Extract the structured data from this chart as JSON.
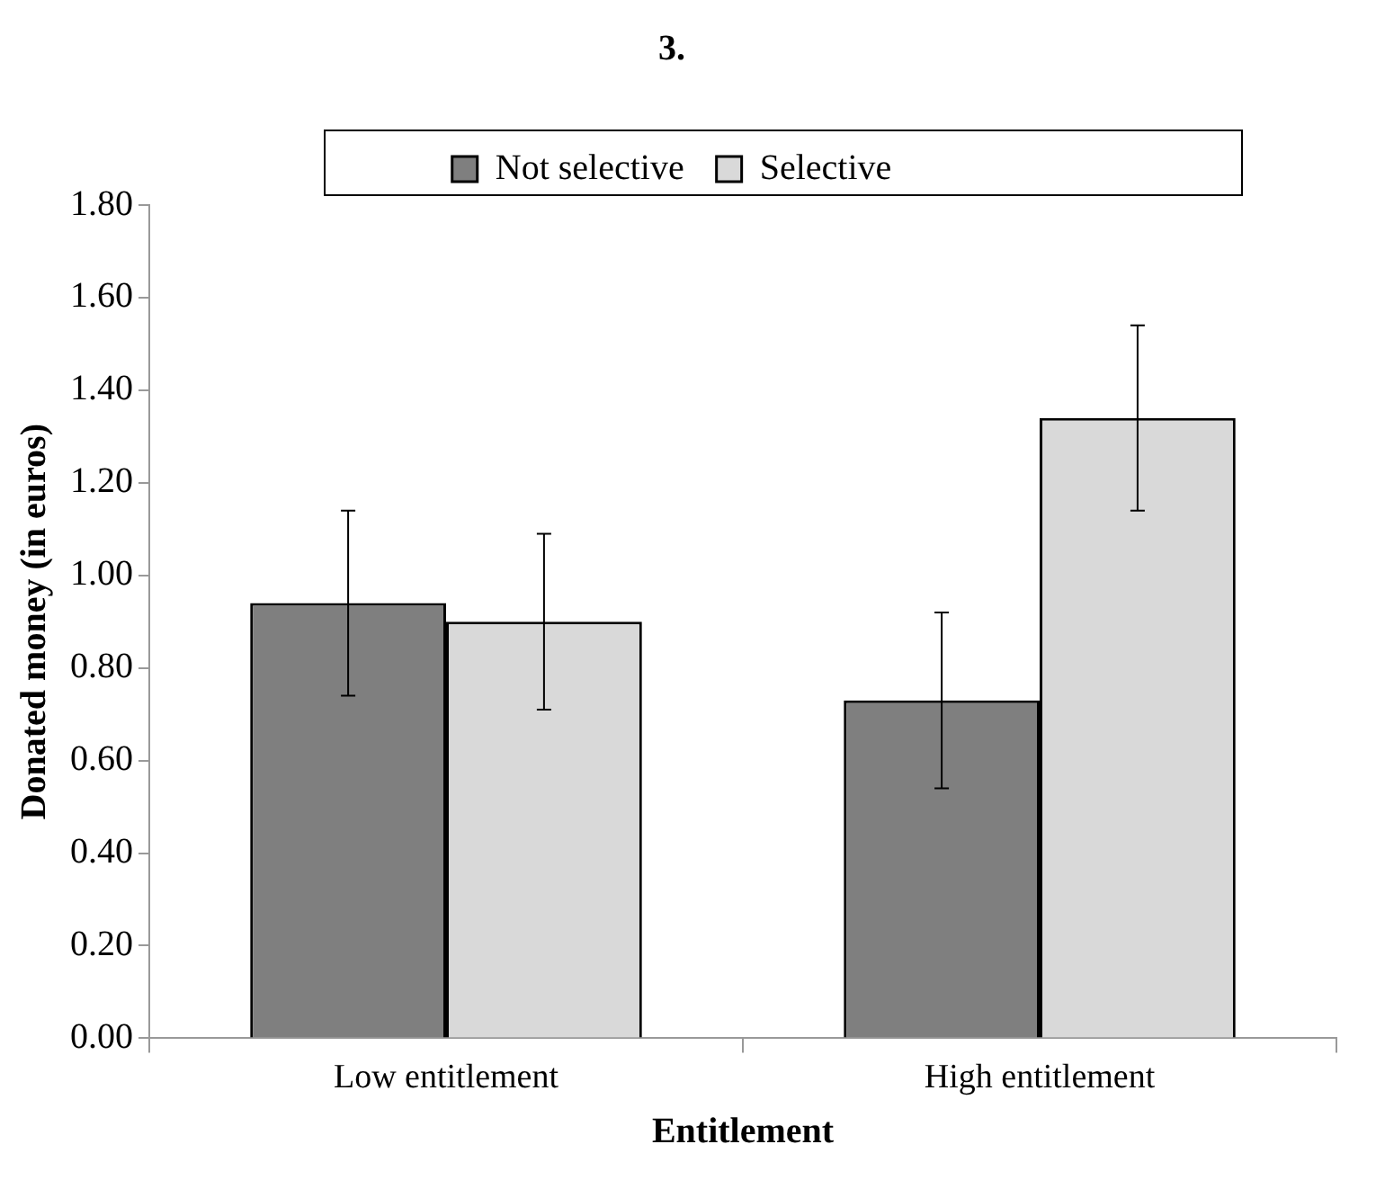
{
  "chart_data": {
    "type": "bar",
    "title": "3.",
    "xlabel": "Entitlement",
    "ylabel": "Donated money (in euros)",
    "categories": [
      "Low entitlement",
      "High entitlement"
    ],
    "series": [
      {
        "name": "Not selective",
        "color": "#7f7f7f",
        "values": [
          0.94,
          0.73
        ],
        "errors": [
          0.2,
          0.19
        ]
      },
      {
        "name": "Selective",
        "color": "#d9d9d9",
        "values": [
          0.9,
          1.34
        ],
        "errors": [
          0.19,
          0.2
        ]
      }
    ],
    "ylim": [
      0,
      1.8
    ],
    "yticks": [
      {
        "value": 0,
        "label": "0.00"
      },
      {
        "value": 0.2,
        "label": "0.20"
      },
      {
        "value": 0.4,
        "label": "0.40"
      },
      {
        "value": 0.6,
        "label": "0.60"
      },
      {
        "value": 0.8,
        "label": "0.80"
      },
      {
        "value": 1.0,
        "label": "1.00"
      },
      {
        "value": 1.2,
        "label": "1.20"
      },
      {
        "value": 1.4,
        "label": "1.40"
      },
      {
        "value": 1.6,
        "label": "1.60"
      },
      {
        "value": 1.8,
        "label": "1.80"
      }
    ],
    "grid": false,
    "legend": "top"
  }
}
